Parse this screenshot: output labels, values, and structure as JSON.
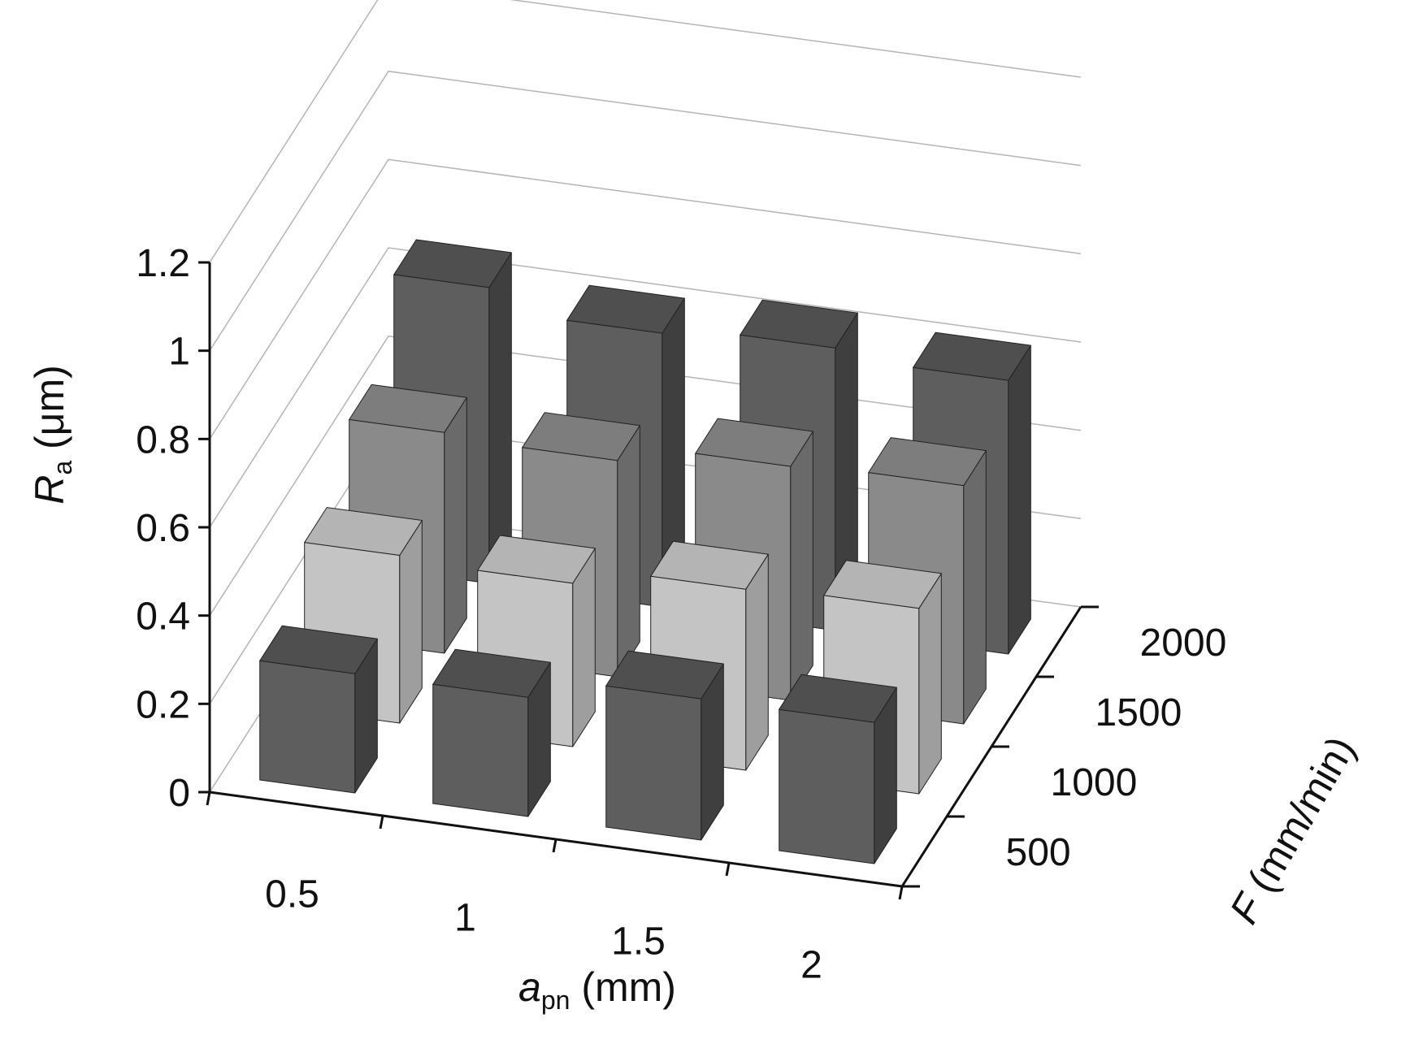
{
  "chart_data": {
    "type": "bar3d",
    "x": {
      "label_main": "a",
      "label_sub": "pn",
      "label_unit": " (mm)",
      "categories": [
        "0.5",
        "1",
        "1.5",
        "2"
      ]
    },
    "y": {
      "label_main": "R",
      "label_sub": "a",
      "label_unit": " (μm)",
      "range": [
        0,
        1.2
      ],
      "ticks": [
        "0",
        "0.2",
        "0.4",
        "0.6",
        "0.8",
        "1",
        "1.2"
      ],
      "tick_values": [
        0,
        0.2,
        0.4,
        0.6,
        0.8,
        1.0,
        1.2
      ]
    },
    "z": {
      "label_main": "F",
      "label_unit": " (mm/min)",
      "categories": [
        "500",
        "1000",
        "1500",
        "2000"
      ]
    },
    "series": [
      {
        "feed": "500",
        "values": [
          0.27,
          0.27,
          0.32,
          0.32
        ]
      },
      {
        "feed": "1000",
        "values": [
          0.38,
          0.37,
          0.41,
          0.42
        ]
      },
      {
        "feed": "1500",
        "values": [
          0.5,
          0.49,
          0.53,
          0.54
        ]
      },
      {
        "feed": "2000",
        "values": [
          0.67,
          0.62,
          0.64,
          0.62
        ]
      }
    ],
    "colors": {
      "dark_front": "#5e5e5e",
      "dark_side": "#3f3f3f",
      "dark_top": "#4f4f4f",
      "mid_front": "#8a8a8a",
      "mid_side": "#6a6a6a",
      "mid_top": "#7d7d7d",
      "light_front": "#c4c4c4",
      "light_side": "#9e9e9e",
      "light_top": "#b4b4b4"
    },
    "grid": true
  }
}
